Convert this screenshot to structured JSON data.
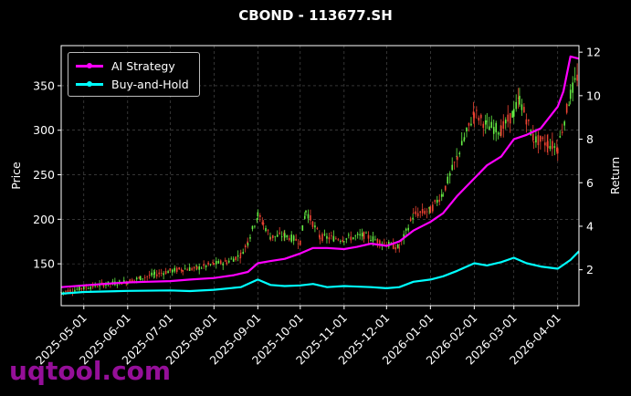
{
  "title": "CBOND - 113677.SH",
  "watermark": "uqtool.com",
  "chart_data": {
    "type": "line",
    "title": "CBOND - 113677.SH",
    "xlabel": "",
    "ylabel_left": "Price",
    "ylabel_right": "Return",
    "x_ticks": [
      "2025-05-01",
      "2025-06-01",
      "2025-07-01",
      "2025-08-01",
      "2025-09-01",
      "2025-10-01",
      "2025-11-01",
      "2025-12-01",
      "2026-01-01",
      "2026-02-01",
      "2026-03-01",
      "2026-04-01"
    ],
    "x_range": [
      "2025-04-15",
      "2026-04-16"
    ],
    "ylim_left": [
      103,
      395
    ],
    "yticks_left": [
      150,
      200,
      250,
      300,
      350
    ],
    "ylim_right": [
      0.35,
      12.3
    ],
    "yticks_right": [
      2,
      4,
      6,
      8,
      10,
      12
    ],
    "grid": true,
    "legend_position": "top-left",
    "candles": {
      "up_color": "#66ee44",
      "down_color": "#ee4433",
      "points": [
        [
          "2025-04-15",
          118
        ],
        [
          "2025-05-01",
          123
        ],
        [
          "2025-05-15",
          127
        ],
        [
          "2025-06-01",
          130
        ],
        [
          "2025-06-10",
          134
        ],
        [
          "2025-06-20",
          138
        ],
        [
          "2025-07-01",
          142
        ],
        [
          "2025-07-10",
          144
        ],
        [
          "2025-07-20",
          145
        ],
        [
          "2025-08-01",
          150
        ],
        [
          "2025-08-10",
          152
        ],
        [
          "2025-08-20",
          160
        ],
        [
          "2025-08-25",
          175
        ],
        [
          "2025-09-01",
          205
        ],
        [
          "2025-09-05",
          195
        ],
        [
          "2025-09-10",
          180
        ],
        [
          "2025-09-20",
          182
        ],
        [
          "2025-10-01",
          175
        ],
        [
          "2025-10-05",
          210
        ],
        [
          "2025-10-15",
          180
        ],
        [
          "2025-11-01",
          178
        ],
        [
          "2025-11-15",
          182
        ],
        [
          "2025-12-01",
          172
        ],
        [
          "2025-12-10",
          168
        ],
        [
          "2025-12-20",
          205
        ],
        [
          "2026-01-01",
          210
        ],
        [
          "2026-01-10",
          230
        ],
        [
          "2026-01-20",
          270
        ],
        [
          "2026-01-25",
          290
        ],
        [
          "2026-02-01",
          320
        ],
        [
          "2026-02-10",
          305
        ],
        [
          "2026-02-20",
          300
        ],
        [
          "2026-03-01",
          320
        ],
        [
          "2026-03-05",
          335
        ],
        [
          "2026-03-15",
          290
        ],
        [
          "2026-03-25",
          285
        ],
        [
          "2026-04-01",
          280
        ],
        [
          "2026-04-10",
          340
        ],
        [
          "2026-04-16",
          365
        ]
      ]
    },
    "series": [
      {
        "name": "AI Strategy",
        "color": "#ff00ff",
        "axis": "right",
        "points": [
          [
            "2025-04-15",
            1.2
          ],
          [
            "2025-05-01",
            1.28
          ],
          [
            "2025-05-15",
            1.35
          ],
          [
            "2025-06-01",
            1.42
          ],
          [
            "2025-06-15",
            1.45
          ],
          [
            "2025-07-01",
            1.48
          ],
          [
            "2025-07-15",
            1.55
          ],
          [
            "2025-08-01",
            1.62
          ],
          [
            "2025-08-15",
            1.75
          ],
          [
            "2025-08-25",
            1.9
          ],
          [
            "2025-09-01",
            2.3
          ],
          [
            "2025-09-10",
            2.4
          ],
          [
            "2025-09-20",
            2.5
          ],
          [
            "2025-10-01",
            2.75
          ],
          [
            "2025-10-10",
            3.0
          ],
          [
            "2025-10-20",
            3.0
          ],
          [
            "2025-11-01",
            2.95
          ],
          [
            "2025-11-10",
            3.05
          ],
          [
            "2025-11-20",
            3.2
          ],
          [
            "2025-12-01",
            3.1
          ],
          [
            "2025-12-10",
            3.3
          ],
          [
            "2025-12-20",
            3.8
          ],
          [
            "2026-01-01",
            4.2
          ],
          [
            "2026-01-10",
            4.6
          ],
          [
            "2026-01-20",
            5.4
          ],
          [
            "2026-02-01",
            6.2
          ],
          [
            "2026-02-10",
            6.8
          ],
          [
            "2026-02-20",
            7.2
          ],
          [
            "2026-03-01",
            8.0
          ],
          [
            "2026-03-10",
            8.2
          ],
          [
            "2026-03-20",
            8.5
          ],
          [
            "2026-04-01",
            9.5
          ],
          [
            "2026-04-05",
            10.2
          ],
          [
            "2026-04-10",
            11.8
          ],
          [
            "2026-04-16",
            11.7
          ]
        ]
      },
      {
        "name": "Buy-and-Hold",
        "color": "#00ffff",
        "axis": "right",
        "points": [
          [
            "2025-04-15",
            0.9
          ],
          [
            "2025-05-01",
            0.98
          ],
          [
            "2025-06-01",
            1.03
          ],
          [
            "2025-07-01",
            1.05
          ],
          [
            "2025-07-15",
            1.02
          ],
          [
            "2025-08-01",
            1.08
          ],
          [
            "2025-08-20",
            1.2
          ],
          [
            "2025-09-01",
            1.55
          ],
          [
            "2025-09-10",
            1.3
          ],
          [
            "2025-09-20",
            1.25
          ],
          [
            "2025-10-01",
            1.28
          ],
          [
            "2025-10-10",
            1.35
          ],
          [
            "2025-10-20",
            1.2
          ],
          [
            "2025-11-01",
            1.25
          ],
          [
            "2025-11-20",
            1.2
          ],
          [
            "2025-12-01",
            1.15
          ],
          [
            "2025-12-10",
            1.2
          ],
          [
            "2025-12-20",
            1.45
          ],
          [
            "2026-01-01",
            1.55
          ],
          [
            "2026-01-10",
            1.7
          ],
          [
            "2026-01-20",
            1.95
          ],
          [
            "2026-02-01",
            2.3
          ],
          [
            "2026-02-10",
            2.2
          ],
          [
            "2026-02-20",
            2.35
          ],
          [
            "2026-03-01",
            2.55
          ],
          [
            "2026-03-10",
            2.3
          ],
          [
            "2026-03-20",
            2.15
          ],
          [
            "2026-04-01",
            2.05
          ],
          [
            "2026-04-10",
            2.45
          ],
          [
            "2026-04-16",
            2.85
          ]
        ]
      }
    ]
  }
}
